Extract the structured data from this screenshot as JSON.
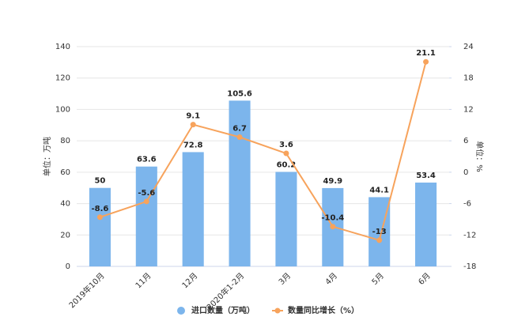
{
  "chart_data": {
    "type": "bar",
    "categories": [
      "2019年10月",
      "11月",
      "12月",
      "2020年1-2月",
      "3月",
      "4月",
      "5月",
      "6月"
    ],
    "series": [
      {
        "name": "进口数量（万吨）",
        "type": "bar",
        "color": "#7cb5ec",
        "values": [
          50,
          63.6,
          72.8,
          105.6,
          60.2,
          49.9,
          44.1,
          53.4
        ]
      },
      {
        "name": "数量同比增长（%）",
        "type": "line",
        "axis": "y2",
        "color": "#f7a35c",
        "values": [
          -8.6,
          -5.6,
          9.1,
          6.7,
          3.6,
          -10.4,
          -13,
          21.1
        ]
      }
    ],
    "ylabel": "单位：万吨",
    "y2label": "单位：%",
    "ylim": [
      0,
      140
    ],
    "yticks": [
      0,
      20,
      40,
      60,
      80,
      100,
      120,
      140
    ],
    "y2lim": [
      -18,
      24
    ],
    "y2ticks": [
      -18,
      -12,
      -6,
      0,
      6,
      12,
      18,
      24
    ]
  }
}
